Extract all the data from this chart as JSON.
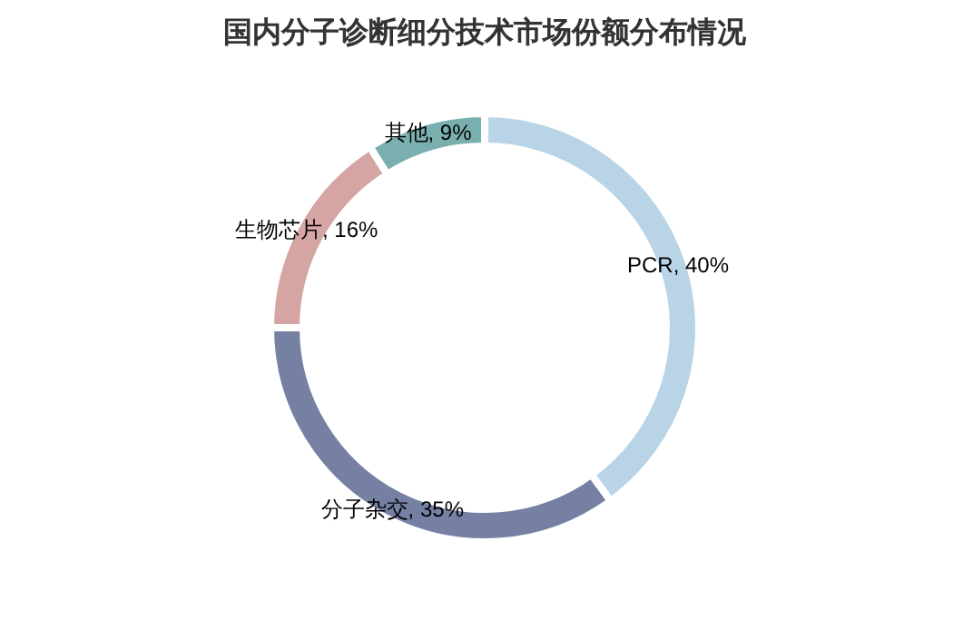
{
  "chart_data": {
    "type": "donut",
    "title": "国内分子诊断细分技术市场份额分布情况",
    "categories": [
      "PCR",
      "分子杂交",
      "生物芯片",
      "其他"
    ],
    "values": [
      40,
      35,
      16,
      9
    ],
    "value_labels": [
      "40%",
      "35%",
      "16%",
      "9%"
    ],
    "colors": [
      "#b8d4e6",
      "#7580a3",
      "#d4a5a3",
      "#7aafb0"
    ],
    "legend": false
  }
}
